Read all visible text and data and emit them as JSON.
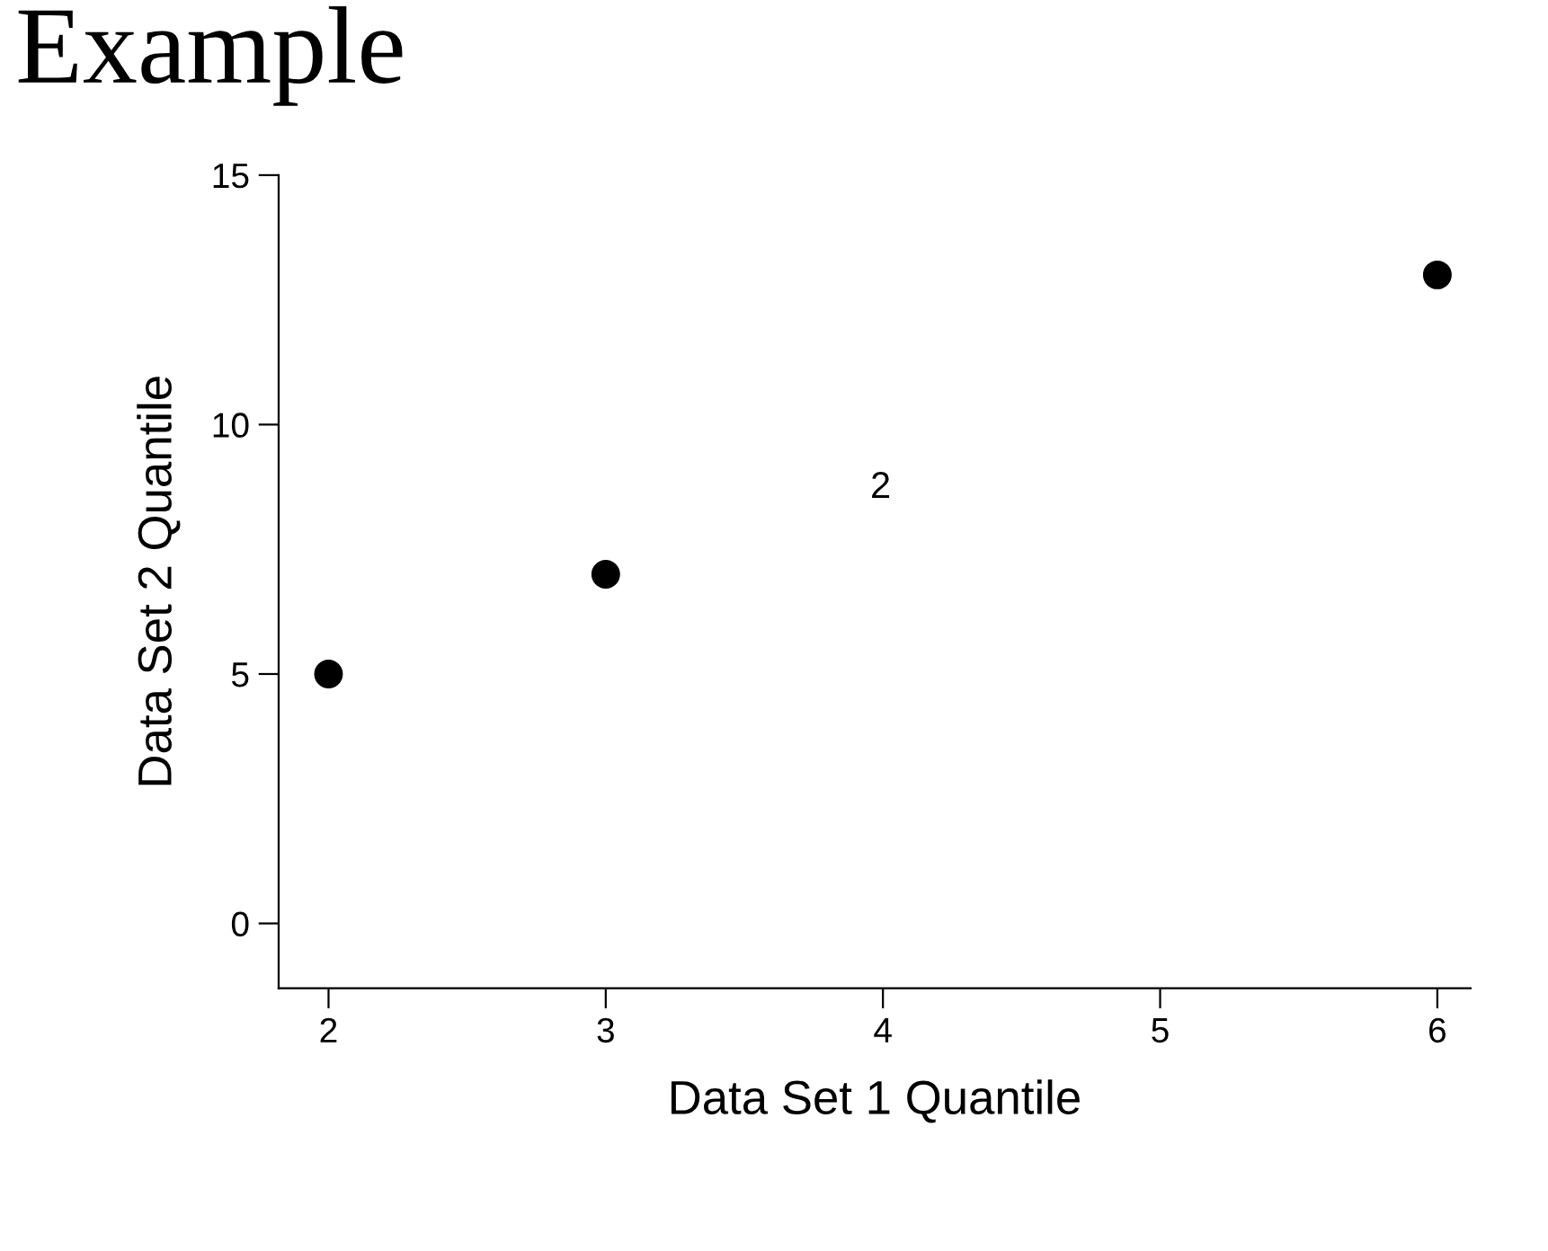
{
  "chart_data": {
    "type": "scatter",
    "title": "Example",
    "xlabel": "Data Set 1 Quantile",
    "ylabel": "Data Set 2 Quantile",
    "x": [
      2,
      3,
      6
    ],
    "values": [
      5,
      7,
      13
    ],
    "color": "#000000",
    "marker": "circle",
    "xlim": [
      1.82,
      6.12
    ],
    "ylim": [
      -1.3,
      15
    ],
    "xticks": [
      2,
      3,
      4,
      5,
      6
    ],
    "yticks": [
      0,
      5,
      10,
      15
    ],
    "grid": false,
    "annotations": [
      "2"
    ]
  }
}
